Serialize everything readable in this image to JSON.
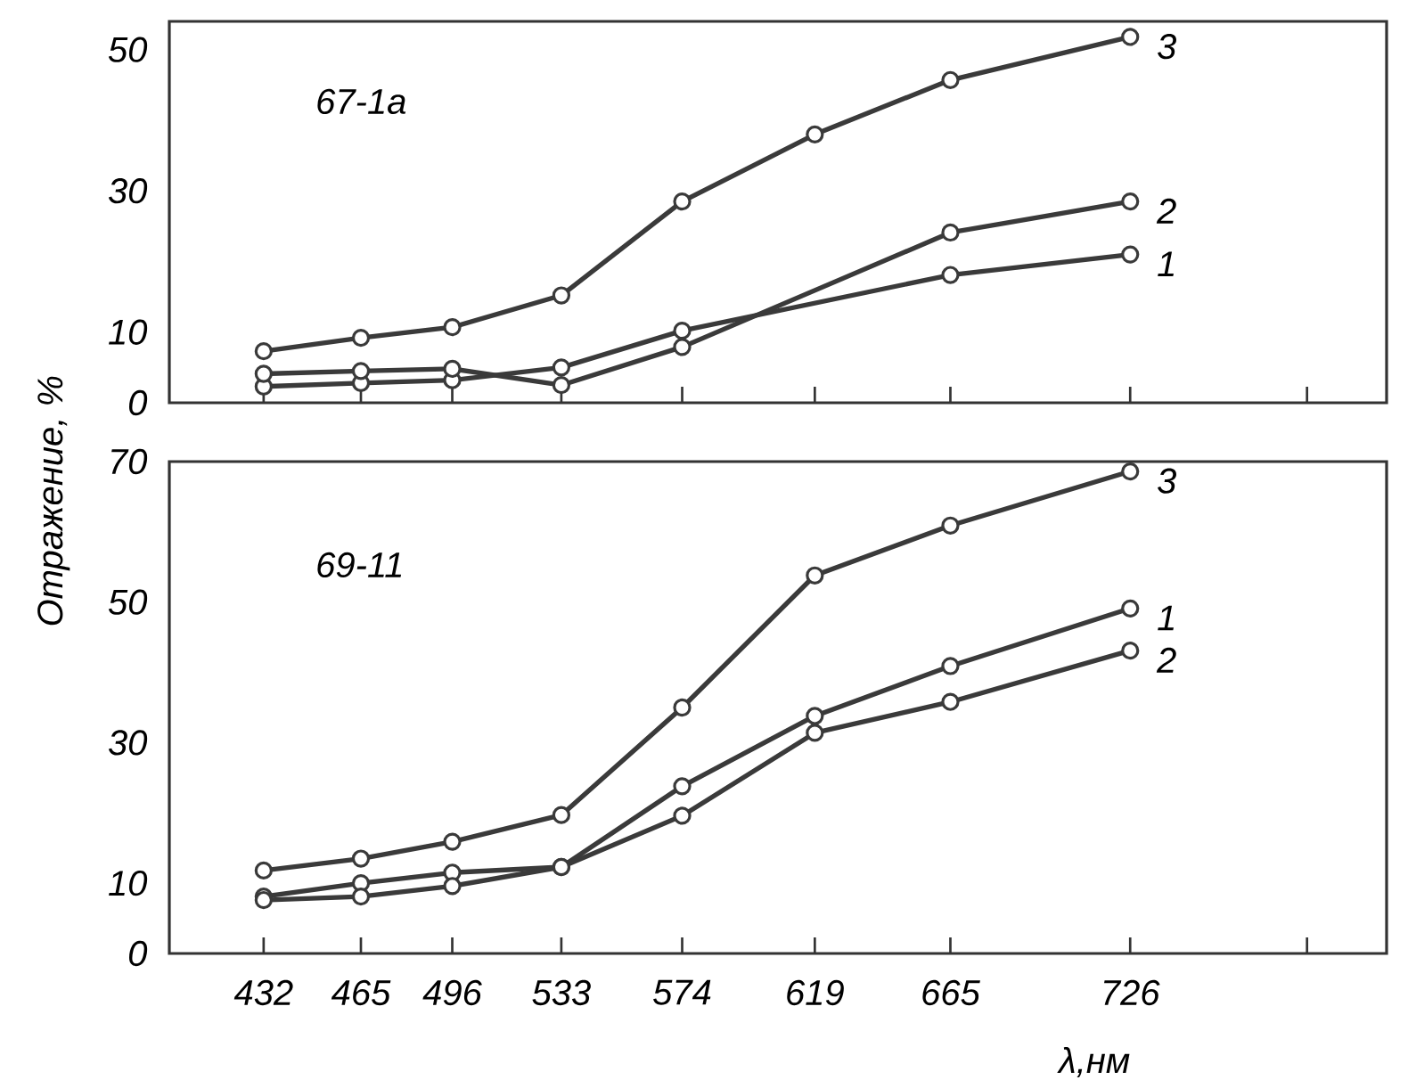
{
  "chart_data": [
    {
      "type": "line",
      "annotations": [
        "67-1a"
      ],
      "x": [
        432,
        465,
        496,
        533,
        574,
        619,
        665,
        726
      ],
      "xlim": [
        400,
        813
      ],
      "xticks": [
        432,
        465,
        496,
        533,
        574,
        619,
        665,
        726,
        {
          "value": 786,
          "label": null
        }
      ],
      "ylim": [
        0,
        54
      ],
      "yticks": [
        0,
        10,
        30,
        50
      ],
      "tick_labels": "y",
      "grid": false,
      "marker": "circle",
      "line_style": "solid",
      "series": [
        {
          "name": "1",
          "color": "#3a3a3a",
          "x": [
            432,
            465,
            496,
            533,
            574,
            665,
            726
          ],
          "values": [
            2.3,
            2.8,
            3.2,
            5.0,
            10.2,
            18.1,
            21.0
          ]
        },
        {
          "name": "2",
          "color": "#3a3a3a",
          "x": [
            432,
            465,
            496,
            533,
            574,
            665,
            726
          ],
          "values": [
            4.1,
            4.5,
            4.8,
            2.5,
            7.9,
            24.1,
            28.5
          ]
        },
        {
          "name": "3",
          "color": "#3a3a3a",
          "values": [
            7.3,
            9.2,
            10.7,
            15.2,
            28.5,
            38,
            45.7,
            51.8
          ]
        }
      ]
    },
    {
      "type": "line",
      "annotations": [
        "69-11"
      ],
      "xlabel": "λ,нм",
      "ylabel": "Отражение, %",
      "x": [
        432,
        465,
        496,
        533,
        574,
        619,
        665,
        726
      ],
      "xlim": [
        400,
        813
      ],
      "xticks": [
        432,
        465,
        496,
        533,
        574,
        619,
        665,
        726,
        {
          "value": 786,
          "label": null
        }
      ],
      "ylim": [
        0,
        70
      ],
      "yticks": [
        0,
        10,
        30,
        50,
        70
      ],
      "grid": false,
      "marker": "circle",
      "line_style": "solid",
      "series": [
        {
          "name": "1",
          "color": "#3a3a3a",
          "values": [
            8.1,
            10,
            11.5,
            12.3,
            23.8,
            33.8,
            40.9,
            49.1
          ]
        },
        {
          "name": "2",
          "color": "#3a3a3a",
          "values": [
            7.6,
            8.1,
            9.6,
            12.3,
            19.6,
            31.4,
            35.8,
            43.1
          ]
        },
        {
          "name": "3",
          "color": "#3a3a3a",
          "values": [
            11.8,
            13.5,
            15.9,
            19.7,
            35,
            53.8,
            60.9,
            68.6
          ]
        }
      ]
    }
  ]
}
